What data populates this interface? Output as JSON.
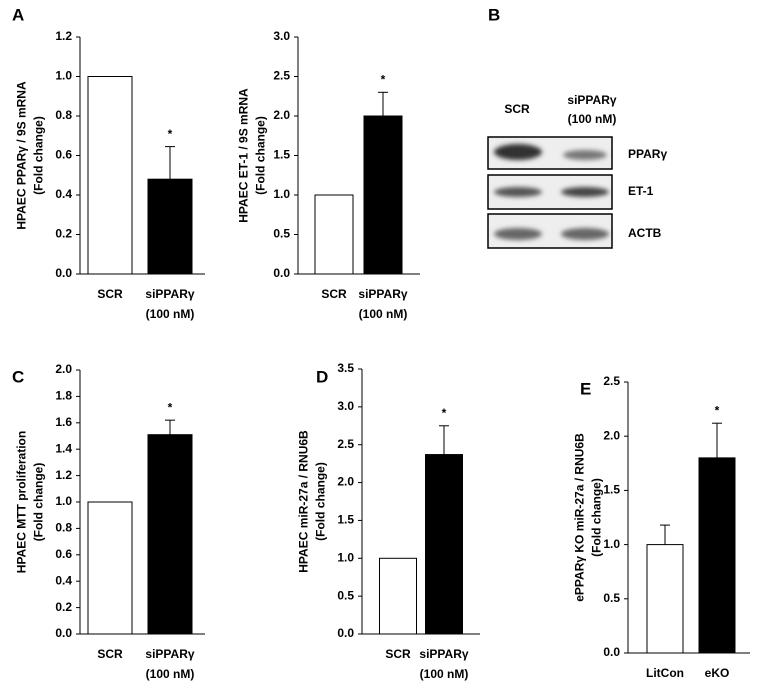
{
  "chart_data": [
    {
      "type": "bar",
      "panel_label": "A",
      "ylabel": [
        "HPAEC PPARγ / 9S mRNA",
        "(Fold change)"
      ],
      "categories": [
        [
          "SCR"
        ],
        [
          "siPPARγ",
          "(100 nM)"
        ]
      ],
      "values": [
        1.0,
        0.48
      ],
      "errors": [
        0,
        0.165
      ],
      "colors": [
        "#ffffff",
        "#000000"
      ],
      "annotations": [
        {
          "text": "*",
          "at": 1
        }
      ],
      "ylim": [
        0,
        1.2
      ],
      "yticks": [
        {
          "value": 0,
          "label": "0.0"
        },
        0.2,
        0.4,
        0.6,
        0.8,
        {
          "value": 1,
          "label": "1.0"
        },
        1.2
      ]
    },
    {
      "type": "bar",
      "ylabel": [
        "HPAEC  ET-1 / 9S mRNA",
        "(Fold change)"
      ],
      "categories": [
        [
          "SCR"
        ],
        [
          "siPPARγ",
          "(100 nM)"
        ]
      ],
      "values": [
        1.0,
        2.0
      ],
      "errors": [
        0,
        0.3
      ],
      "colors": [
        "#ffffff",
        "#000000"
      ],
      "annotations": [
        {
          "text": "*",
          "at": 1
        }
      ],
      "ylim": [
        0,
        3
      ],
      "yticks": [
        {
          "value": 0,
          "label": "0.0"
        },
        0.5,
        {
          "value": 1,
          "label": "1.0"
        },
        1.5,
        {
          "value": 2,
          "label": "2.0"
        },
        2.5,
        {
          "value": 3,
          "label": "3.0"
        }
      ]
    },
    {
      "type": "bar",
      "panel_label": "C",
      "ylabel": [
        "HPAEC MTT proliferation",
        "(Fold change)"
      ],
      "categories": [
        [
          "SCR"
        ],
        [
          "siPPARγ",
          "(100 nM)"
        ]
      ],
      "values": [
        1.0,
        1.51
      ],
      "errors": [
        0,
        0.11
      ],
      "colors": [
        "#ffffff",
        "#000000"
      ],
      "annotations": [
        {
          "text": "*",
          "at": 1
        }
      ],
      "ylim": [
        0,
        2
      ],
      "yticks": [
        {
          "value": 0,
          "label": "0.0"
        },
        0.2,
        0.4,
        0.6,
        0.8,
        {
          "value": 1,
          "label": "1.0"
        },
        1.2,
        1.4,
        1.6,
        1.8,
        {
          "value": 2,
          "label": "2.0"
        }
      ]
    },
    {
      "type": "bar",
      "panel_label": "D",
      "ylabel": [
        "HPAEC  miR-27a / RNU6B",
        "(Fold change)"
      ],
      "categories": [
        [
          "SCR"
        ],
        [
          "siPPARγ",
          "(100 nM)"
        ]
      ],
      "values": [
        1.0,
        2.37
      ],
      "errors": [
        0,
        0.38
      ],
      "colors": [
        "#ffffff",
        "#000000"
      ],
      "annotations": [
        {
          "text": "*",
          "at": 1
        }
      ],
      "ylim": [
        0,
        3.5
      ],
      "yticks": [
        {
          "value": 0,
          "label": "0.0"
        },
        0.5,
        {
          "value": 1,
          "label": "1.0"
        },
        1.5,
        {
          "value": 2,
          "label": "2.0"
        },
        2.5,
        {
          "value": 3,
          "label": "3.0"
        },
        3.5
      ]
    },
    {
      "type": "bar",
      "panel_label": "E",
      "ylabel": [
        "ePPARγ KO miR-27a / RNU6B",
        "(Fold change)"
      ],
      "categories": [
        [
          "LitCon"
        ],
        [
          "eKO"
        ]
      ],
      "values": [
        1.0,
        1.8
      ],
      "errors": [
        0.18,
        0.32
      ],
      "colors": [
        "#ffffff",
        "#000000"
      ],
      "annotations": [
        {
          "text": "*",
          "at": 1
        }
      ],
      "ylim": [
        0,
        2.5
      ],
      "yticks": [
        {
          "value": 0,
          "label": "0.0"
        },
        0.5,
        {
          "value": 1,
          "label": "1.0"
        },
        1.5,
        {
          "value": 2,
          "label": "2.0"
        },
        2.5
      ]
    }
  ],
  "blot": {
    "panel_label": "B",
    "lanes": [
      [
        "SCR"
      ],
      [
        "siPPARγ",
        "(100 nM)"
      ]
    ],
    "rows": [
      "PPARγ",
      "ET-1",
      "ACTB"
    ]
  }
}
